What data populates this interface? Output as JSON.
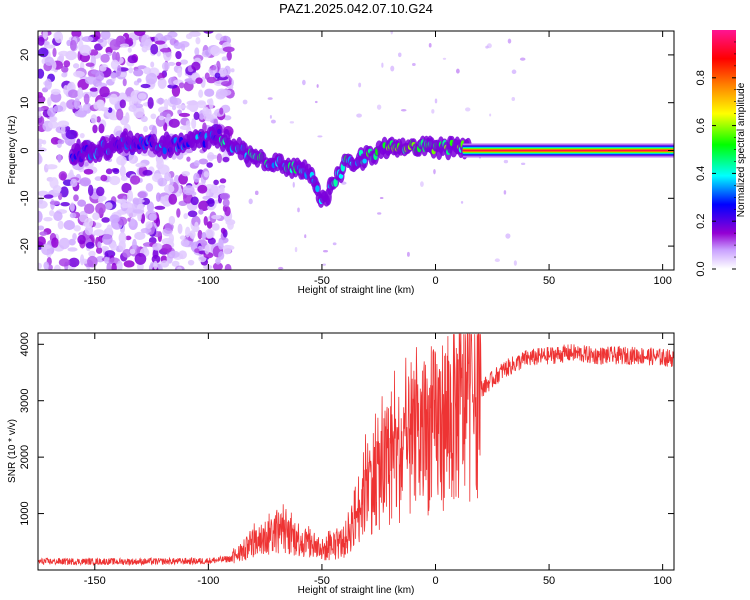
{
  "chart_data": [
    {
      "type": "heatmap",
      "title": "PAZ1.2025.042.07.10.G24",
      "xlabel": "Height of straight line (km)",
      "ylabel": "Frequency (Hz)",
      "xlim": [
        -175,
        105
      ],
      "ylim": [
        -25,
        25
      ],
      "xticks": [
        -150,
        -100,
        -50,
        0,
        50,
        100
      ],
      "yticks": [
        -20,
        -10,
        0,
        10,
        20
      ],
      "colorbar": {
        "label": "Normalized spectral amplitude",
        "range": [
          0,
          1
        ],
        "ticks": [
          0.0,
          0.2,
          0.4,
          0.6,
          0.8
        ],
        "colors": [
          "#ffffff",
          "#9400d3",
          "#0000ff",
          "#00ffff",
          "#00ff00",
          "#ffff00",
          "#ff8000",
          "#ff0000",
          "#ff1493"
        ]
      },
      "features": {
        "noise_region_x": [
          -175,
          -90
        ],
        "signal_track": [
          {
            "x": -150,
            "freq": 0
          },
          {
            "x": -135,
            "freq": 2
          },
          {
            "x": -120,
            "freq": 1
          },
          {
            "x": -95,
            "freq": 3
          },
          {
            "x": -80,
            "freq": -2
          },
          {
            "x": -65,
            "freq": -3
          },
          {
            "x": -55,
            "freq": -5
          },
          {
            "x": -50,
            "freq": -11
          },
          {
            "x": -40,
            "freq": -3
          },
          {
            "x": -25,
            "freq": 0
          },
          {
            "x": -10,
            "freq": 1
          },
          {
            "x": 0,
            "freq": 0
          },
          {
            "x": 10,
            "freq": 1
          },
          {
            "x": 15,
            "freq": 0
          },
          {
            "x": 105,
            "freq": 0
          }
        ]
      }
    },
    {
      "type": "line",
      "title": "",
      "xlabel": "Height of straight line (km)",
      "ylabel": "SNR (10 * v/v)",
      "xlim": [
        -175,
        105
      ],
      "ylim": [
        0,
        4200
      ],
      "xticks": [
        -150,
        -100,
        -50,
        0,
        50,
        100
      ],
      "yticks": [
        1000,
        2000,
        3000,
        4000
      ],
      "series": [
        {
          "color": "#ee3333",
          "profile": [
            {
              "x": -175,
              "y": 150
            },
            {
              "x": -150,
              "y": 150
            },
            {
              "x": -125,
              "y": 150
            },
            {
              "x": -100,
              "y": 160
            },
            {
              "x": -90,
              "y": 200
            },
            {
              "x": -80,
              "y": 450
            },
            {
              "x": -70,
              "y": 700
            },
            {
              "x": -60,
              "y": 550
            },
            {
              "x": -50,
              "y": 350
            },
            {
              "x": -40,
              "y": 500
            },
            {
              "x": -35,
              "y": 1000
            },
            {
              "x": -30,
              "y": 1500
            },
            {
              "x": -20,
              "y": 1900
            },
            {
              "x": -10,
              "y": 2200
            },
            {
              "x": 0,
              "y": 2500
            },
            {
              "x": 10,
              "y": 2800
            },
            {
              "x": 20,
              "y": 3200
            },
            {
              "x": 30,
              "y": 3550
            },
            {
              "x": 40,
              "y": 3750
            },
            {
              "x": 50,
              "y": 3800
            },
            {
              "x": 60,
              "y": 3850
            },
            {
              "x": 70,
              "y": 3800
            },
            {
              "x": 80,
              "y": 3800
            },
            {
              "x": 90,
              "y": 3800
            },
            {
              "x": 105,
              "y": 3750
            }
          ]
        }
      ]
    }
  ]
}
